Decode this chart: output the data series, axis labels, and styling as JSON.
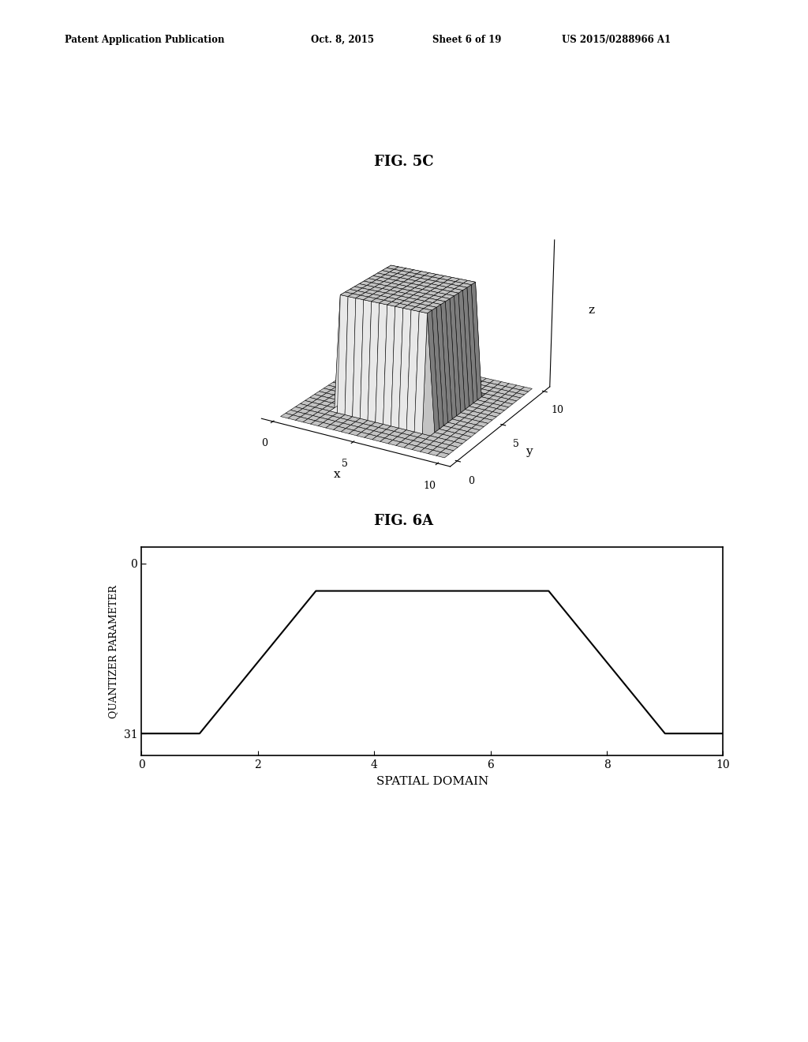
{
  "fig_width": 10.24,
  "fig_height": 13.2,
  "bg_color": "#ffffff",
  "header_text": "Patent Application Publication",
  "header_date": "Oct. 8, 2015",
  "header_sheet": "Sheet 6 of 19",
  "header_patent": "US 2015/0288966 A1",
  "fig5c_title": "FIG. 5C",
  "fig6a_title": "FIG. 6A",
  "plot3d_xlabel": "x",
  "plot3d_ylabel": "y",
  "plot3d_zlabel": "z",
  "plot3d_elev": 22,
  "plot3d_azim": -60,
  "plot2d_xlabel": "SPATIAL DOMAIN",
  "plot2d_ylabel": "QUANTIZER PARAMETER",
  "plot2d_xticks": [
    0,
    2,
    4,
    6,
    8,
    10
  ],
  "plot2d_yticks": [
    0,
    31
  ],
  "plot2d_xlim": [
    0,
    10
  ],
  "plot2d_ylim": [
    35,
    -3
  ],
  "trapezoid_x": [
    0,
    1,
    3,
    7,
    9,
    10
  ],
  "trapezoid_y": [
    31,
    31,
    5,
    5,
    31,
    31
  ],
  "line_color": "#000000",
  "line_width": 1.5,
  "surface_color": "#ffffff",
  "surface_edge_color": "#000000",
  "surface_edge_linewidth": 0.4
}
